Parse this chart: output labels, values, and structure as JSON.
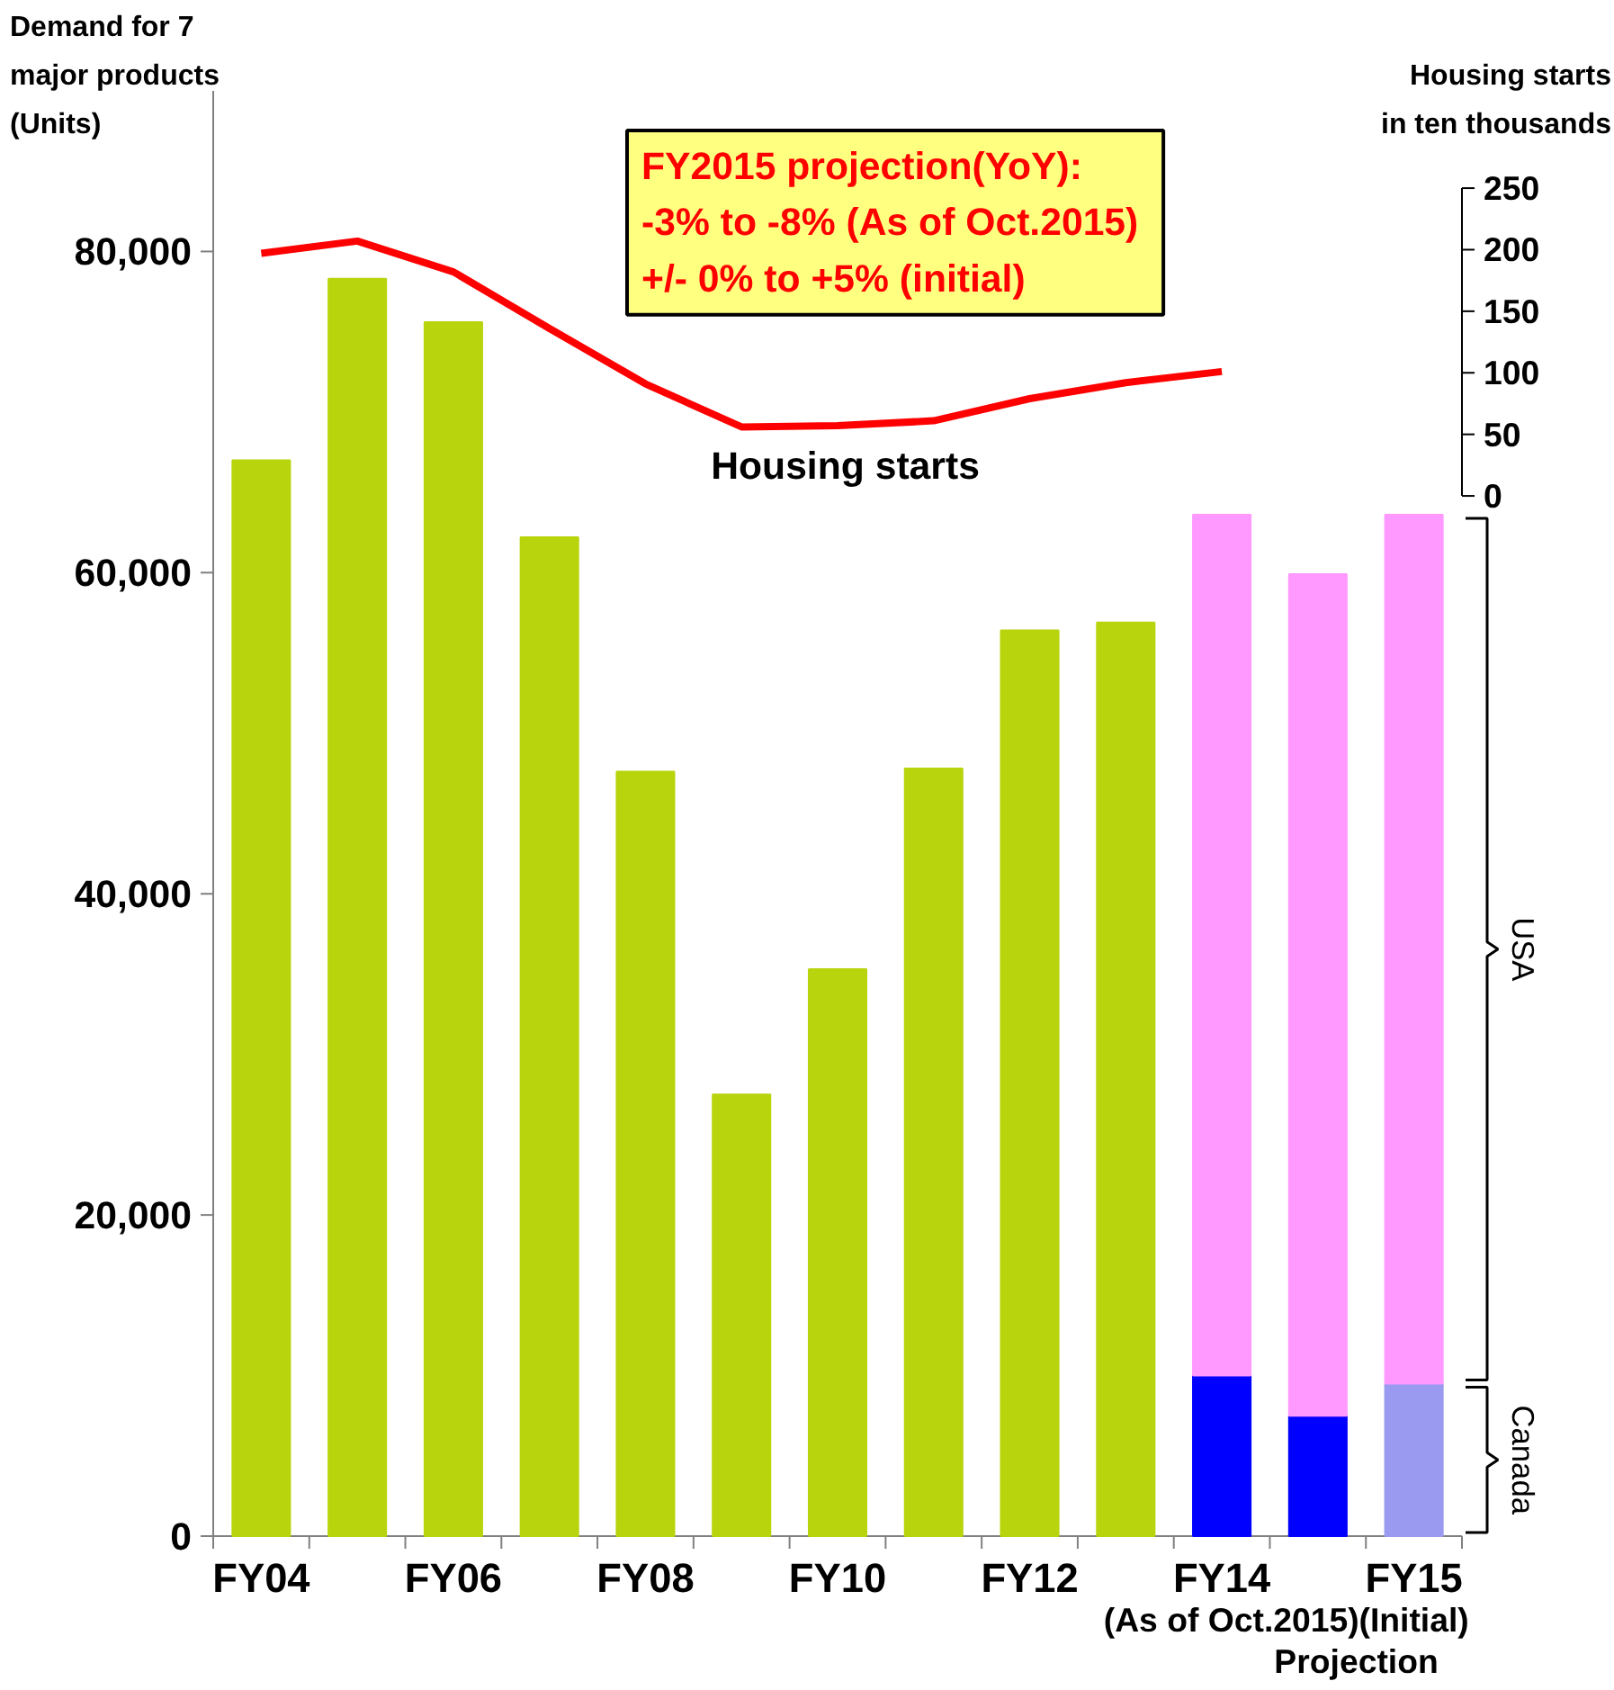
{
  "chart_data": {
    "type": "bar",
    "stacked": true,
    "ylabel": "Demand for 7\nmajor products\n(Units)",
    "y2label": "Housing starts\nin ten thousands",
    "categories": [
      "FY04",
      null,
      "FY06",
      null,
      "FY08",
      null,
      "FY10",
      null,
      "FY12",
      null,
      "FY14",
      null,
      "FY15"
    ],
    "series": [
      {
        "color": "#b8d40c",
        "values": [
          67000,
          78300,
          75600,
          62200,
          47600,
          27500,
          35300,
          47800,
          56400,
          56900,
          null,
          null,
          null
        ]
      },
      {
        "name": "Canada",
        "colors": [
          null,
          null,
          null,
          null,
          null,
          null,
          null,
          null,
          null,
          null,
          "#0000ff",
          "#0000ff",
          "#9a9af0"
        ],
        "values": [
          null,
          null,
          null,
          null,
          null,
          null,
          null,
          null,
          null,
          null,
          10000,
          7500,
          9500
        ]
      },
      {
        "name": "USA",
        "color": "#ff99ff",
        "values": [
          null,
          null,
          null,
          null,
          null,
          null,
          null,
          null,
          null,
          null,
          53600,
          52400,
          54100
        ]
      },
      {
        "name": "Housing starts",
        "type": "line",
        "axis": "y2",
        "color": "#ff0000",
        "values": [
          197,
          207,
          182,
          136,
          91,
          56,
          57,
          61,
          79,
          92,
          101,
          null,
          null
        ]
      }
    ],
    "ylim": [
      0,
      90000
    ],
    "yticks": [
      {
        "value": 0,
        "label": "0"
      },
      {
        "value": 20000,
        "label": "20,000"
      },
      {
        "value": 40000,
        "label": "40,000"
      },
      {
        "value": 60000,
        "label": "60,000"
      },
      {
        "value": 80000,
        "label": "80,000"
      }
    ],
    "y2lim": [
      -845,
      329
    ],
    "y2ticks": [
      0,
      50,
      100,
      150,
      200,
      250
    ],
    "annotations": [
      "FY2015 projection(YoY):\n -3% to -8% (As of Oct.2015)\n +/- 0% to +5% (initial)",
      "(As of Oct.2015)",
      "(Initial)",
      "Projection"
    ],
    "grid": false,
    "legend": false,
    "marker": "none",
    "line_style": "solid"
  }
}
